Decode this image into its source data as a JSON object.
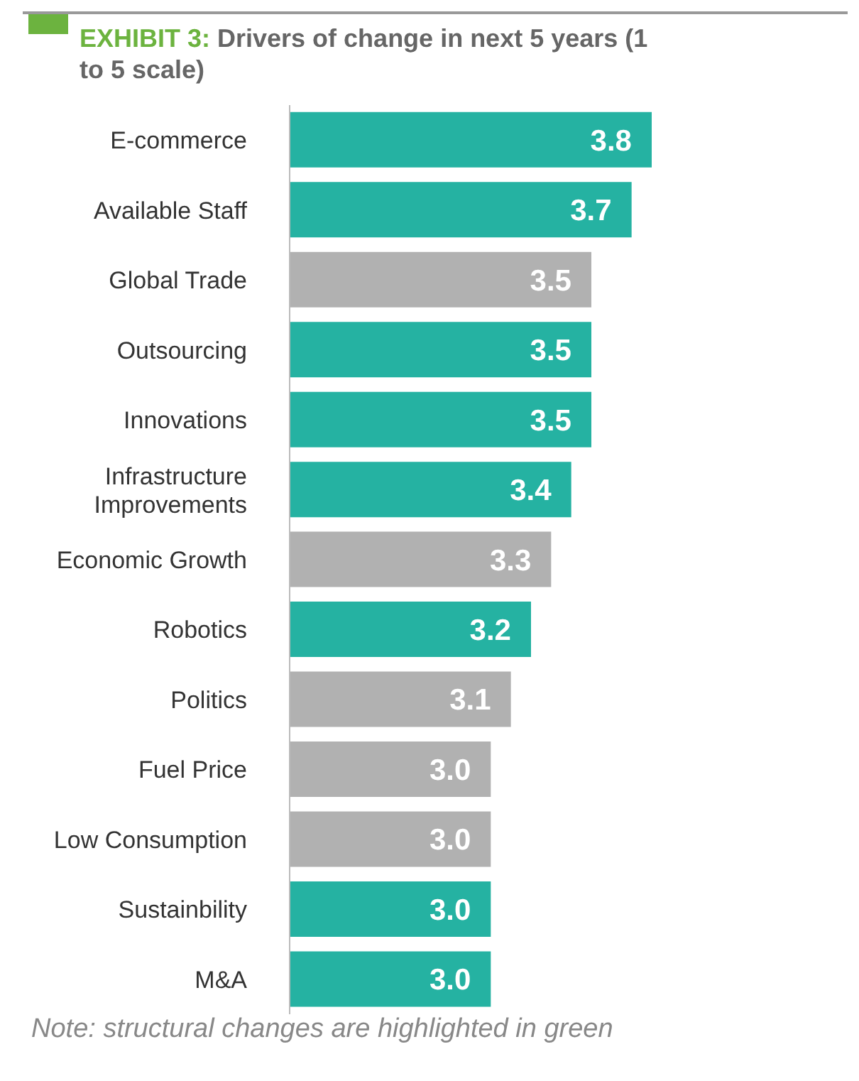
{
  "chart_data": {
    "type": "bar",
    "orientation": "horizontal",
    "title": "EXHIBIT 3: Drivers of change in next 5 years (1 to 5 scale)",
    "categories": [
      "E-commerce",
      "Available Staff",
      "Global Trade",
      "Outsourcing",
      "Innovations",
      "Infrastructure Improvements",
      "Economic Growth",
      "Robotics",
      "Politics",
      "Fuel Price",
      "Low Consumption",
      "Sustainbility",
      "M&A"
    ],
    "values": [
      3.8,
      3.7,
      3.5,
      3.5,
      3.5,
      3.4,
      3.3,
      3.2,
      3.1,
      3.0,
      3.0,
      3.0,
      3.0
    ],
    "colors": [
      "#25b2a2",
      "#25b2a2",
      "#b1b1b1",
      "#25b2a2",
      "#25b2a2",
      "#25b2a2",
      "#b1b1b1",
      "#25b2a2",
      "#b1b1b1",
      "#b1b1b1",
      "#b1b1b1",
      "#25b2a2",
      "#25b2a2"
    ],
    "value_labels": [
      "3.8",
      "3.7",
      "3.5",
      "3.5",
      "3.5",
      "3.4",
      "3.3",
      "3.2",
      "3.1",
      "3.0",
      "3.0",
      "3.0",
      "3.0"
    ],
    "xlim": [
      2,
      3.8
    ],
    "tick_labels": "y",
    "grid": false,
    "annotations": [
      "Note: structural changes are highlighted in green"
    ]
  }
}
